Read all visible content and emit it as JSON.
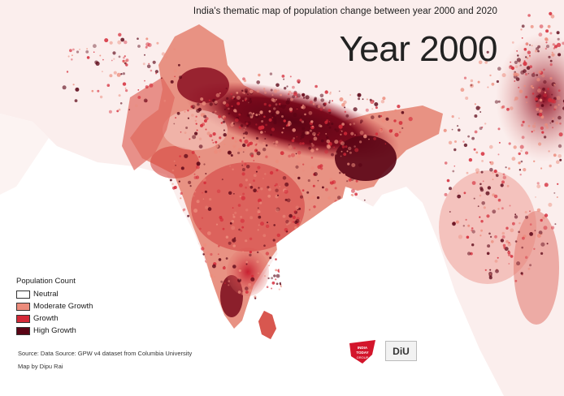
{
  "header": {
    "subtitle": "India's thematic map of population change between year 2000 and 2020",
    "year_label": "Year 2000"
  },
  "legend": {
    "title": "Population Count",
    "items": [
      {
        "label": "Neutral",
        "color": "#ffffff"
      },
      {
        "label": "Moderate Growth",
        "color": "#ec8c7c"
      },
      {
        "label": "Growth",
        "color": "#d42a38"
      },
      {
        "label": "High Growth",
        "color": "#5a0415"
      }
    ]
  },
  "footer": {
    "source": "Source: Data Source: GPW v4 dataset from Columbia University",
    "credit": "Map by Dipu Rai"
  },
  "logos": {
    "india_today": "INDIA TODAY GROUP",
    "diu": "DIU"
  },
  "colors": {
    "land_base": "#fbeeed",
    "water": "#ffffff",
    "moderate": "#ec8c7c",
    "growth": "#d42a38",
    "high": "#5a0415"
  }
}
